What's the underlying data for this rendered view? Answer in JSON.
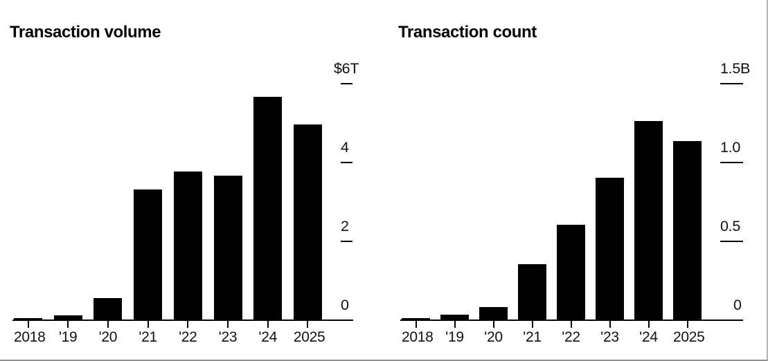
{
  "colors": {
    "background": "#ffffff",
    "bar": "#000000",
    "axis": "#000000",
    "text": "#111111",
    "page_border": "#9e9e9e"
  },
  "chart_data": [
    {
      "type": "bar",
      "title": "Transaction volume",
      "categories": [
        "2018",
        "'19",
        "'20",
        "'21",
        "'22",
        "'23",
        "'24",
        "2025"
      ],
      "values": [
        0.04,
        0.1,
        0.55,
        3.3,
        3.75,
        3.65,
        5.65,
        4.95
      ],
      "unit": "trillions of US dollars",
      "xlabel": "",
      "ylabel": "",
      "ylim": [
        0,
        6
      ],
      "yticks": [
        {
          "label": "$6T",
          "value": 6
        },
        {
          "label": "4",
          "value": 4
        },
        {
          "label": "2",
          "value": 2
        },
        {
          "label": "0",
          "value": 0
        }
      ],
      "legend_position": "none",
      "grid": false,
      "bar_color": "#000000"
    },
    {
      "type": "bar",
      "title": "Transaction count",
      "categories": [
        "2018",
        "'19",
        "'20",
        "'21",
        "'22",
        "'23",
        "'24",
        "2025"
      ],
      "values": [
        0.01,
        0.03,
        0.08,
        0.35,
        0.6,
        0.9,
        1.26,
        1.13
      ],
      "unit": "billions of transactions",
      "xlabel": "",
      "ylabel": "",
      "ylim": [
        0,
        1.5
      ],
      "yticks": [
        {
          "label": "1.5B",
          "value": 1.5
        },
        {
          "label": "1.0",
          "value": 1.0
        },
        {
          "label": "0.5",
          "value": 0.5
        },
        {
          "label": "0",
          "value": 0
        }
      ],
      "legend_position": "none",
      "grid": false,
      "bar_color": "#000000"
    }
  ]
}
